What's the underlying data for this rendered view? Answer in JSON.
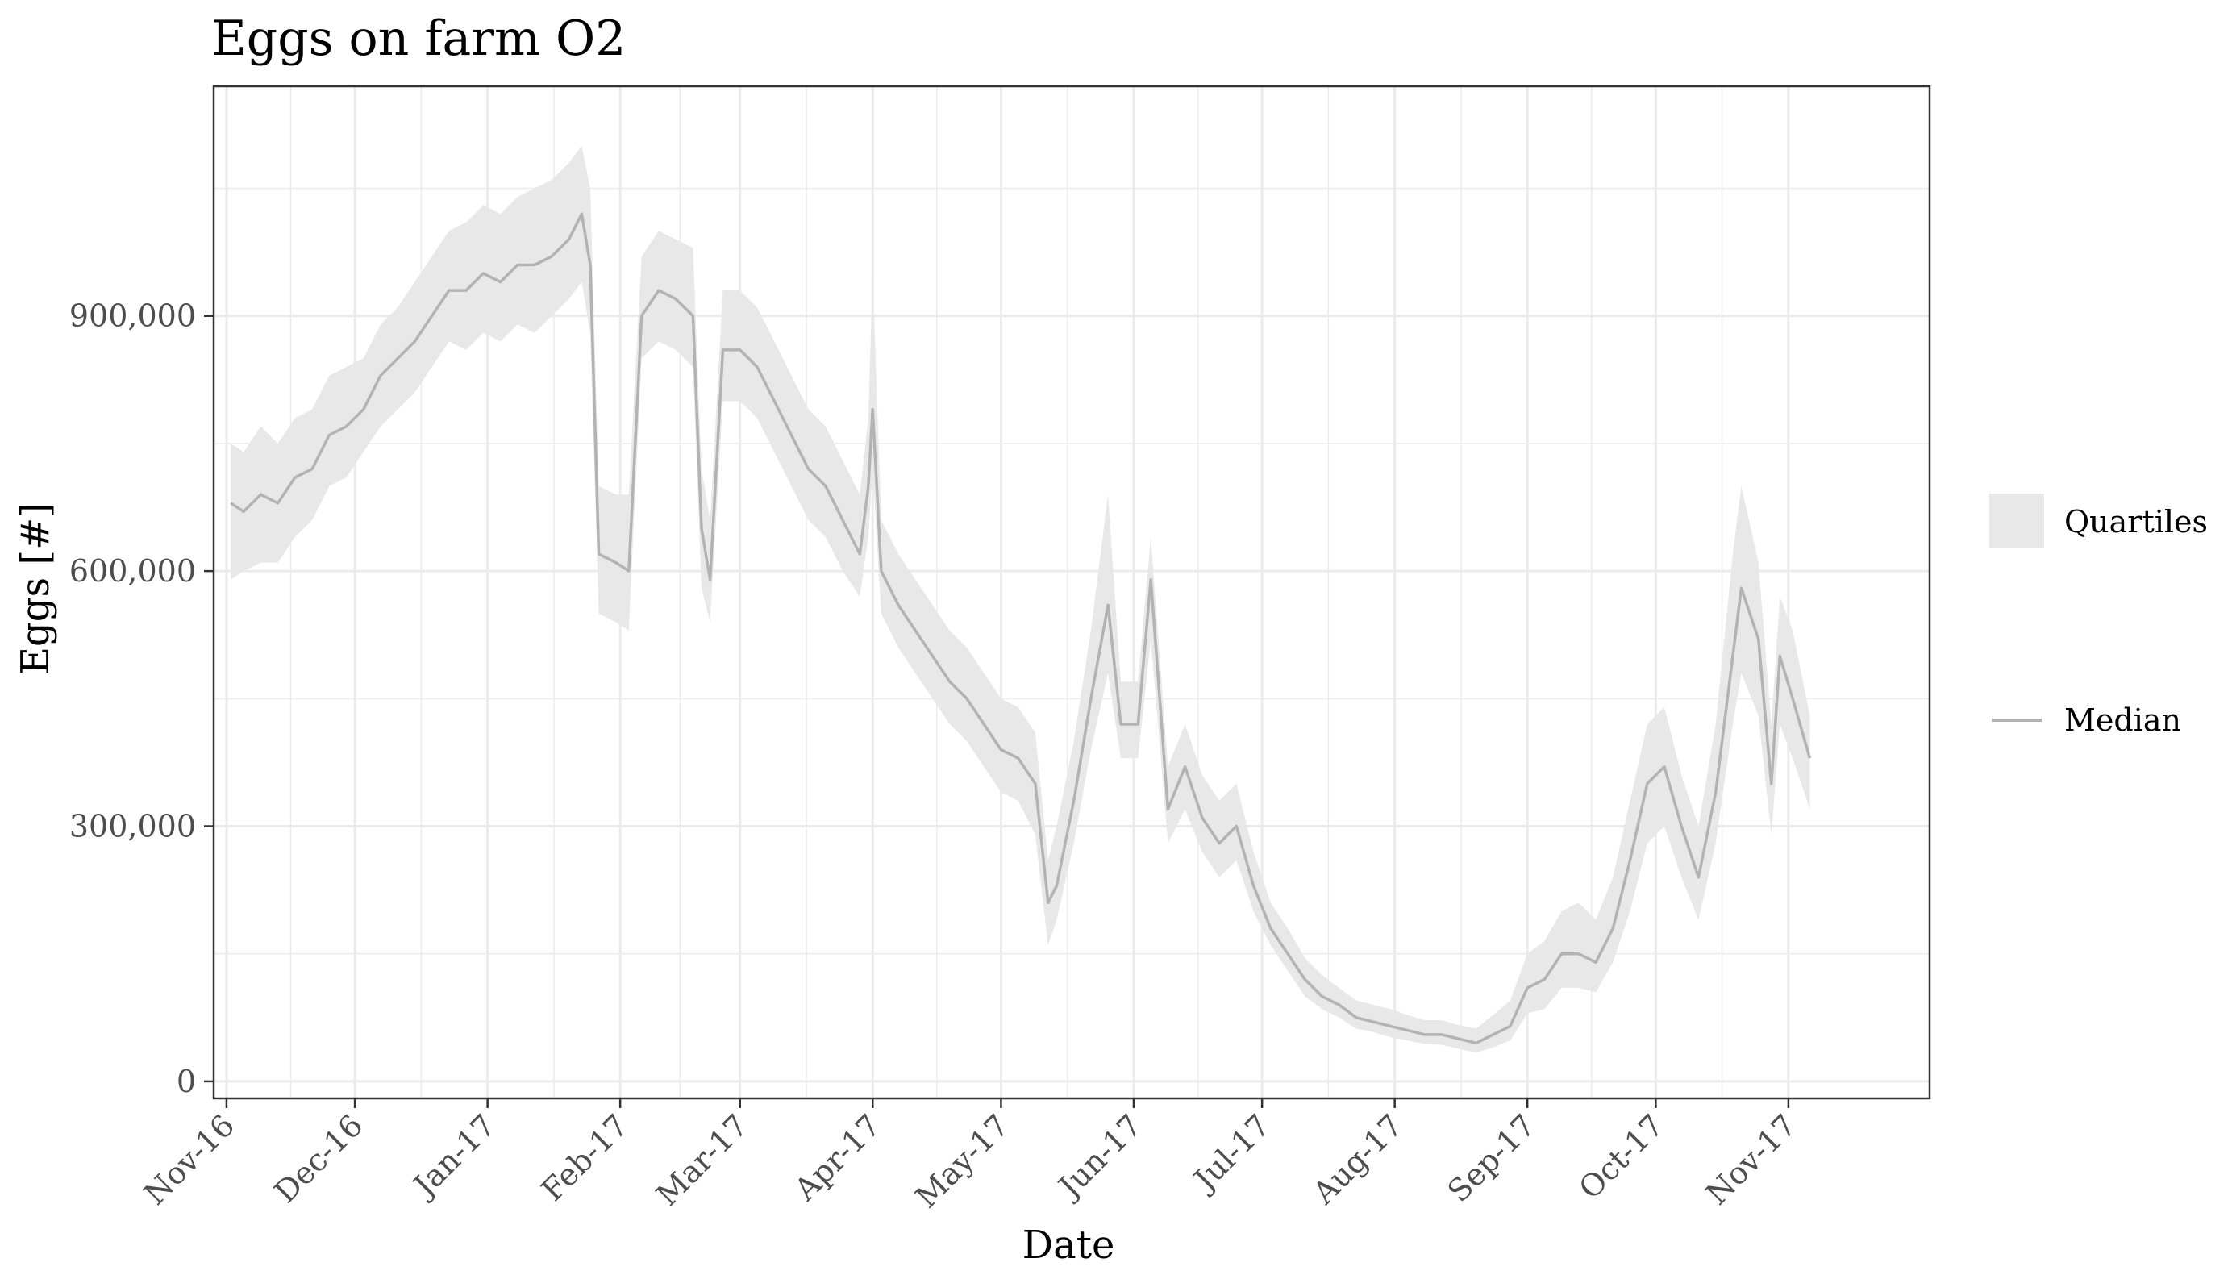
{
  "chart_data": {
    "type": "line",
    "title": "Eggs on farm O2",
    "xlabel": "Date",
    "ylabel": "Eggs [#]",
    "x_ticks": [
      "Nov-16",
      "Dec-16",
      "Jan-17",
      "Feb-17",
      "Mar-17",
      "Apr-17",
      "May-17",
      "Jun-17",
      "Jul-17",
      "Aug-17",
      "Sep-17",
      "Oct-17",
      "Nov-17"
    ],
    "y_ticks": [
      {
        "value": 0,
        "label": "0"
      },
      {
        "value": 300000,
        "label": "300,000"
      },
      {
        "value": 600000,
        "label": "600,000"
      },
      {
        "value": 900000,
        "label": "900,000"
      }
    ],
    "xlim": [
      "2016-10-29",
      "2017-12-04"
    ],
    "ylim": [
      -20000,
      1170000
    ],
    "grid": true,
    "legend_position": "right",
    "colors": {
      "band": "#e8e8e8",
      "median": "#b3b3b3",
      "grid": "#ebebeb",
      "panel_border": "#333333"
    },
    "series": [
      {
        "name": "Median",
        "role": "median",
        "points": [
          [
            "2016-11-02",
            680000
          ],
          [
            "2016-11-05",
            670000
          ],
          [
            "2016-11-09",
            690000
          ],
          [
            "2016-11-13",
            680000
          ],
          [
            "2016-11-17",
            710000
          ],
          [
            "2016-11-21",
            720000
          ],
          [
            "2016-11-25",
            760000
          ],
          [
            "2016-11-29",
            770000
          ],
          [
            "2016-12-03",
            790000
          ],
          [
            "2016-12-07",
            830000
          ],
          [
            "2016-12-11",
            850000
          ],
          [
            "2016-12-15",
            870000
          ],
          [
            "2016-12-19",
            900000
          ],
          [
            "2016-12-23",
            930000
          ],
          [
            "2016-12-27",
            930000
          ],
          [
            "2016-12-31",
            950000
          ],
          [
            "2017-01-04",
            940000
          ],
          [
            "2017-01-08",
            960000
          ],
          [
            "2017-01-12",
            960000
          ],
          [
            "2017-01-16",
            970000
          ],
          [
            "2017-01-20",
            990000
          ],
          [
            "2017-01-23",
            1020000
          ],
          [
            "2017-01-25",
            960000
          ],
          [
            "2017-01-27",
            620000
          ],
          [
            "2017-01-31",
            610000
          ],
          [
            "2017-02-03",
            600000
          ],
          [
            "2017-02-06",
            900000
          ],
          [
            "2017-02-10",
            930000
          ],
          [
            "2017-02-14",
            920000
          ],
          [
            "2017-02-18",
            900000
          ],
          [
            "2017-02-20",
            650000
          ],
          [
            "2017-02-22",
            590000
          ],
          [
            "2017-02-25",
            860000
          ],
          [
            "2017-03-01",
            860000
          ],
          [
            "2017-03-05",
            840000
          ],
          [
            "2017-03-09",
            800000
          ],
          [
            "2017-03-13",
            760000
          ],
          [
            "2017-03-17",
            720000
          ],
          [
            "2017-03-21",
            700000
          ],
          [
            "2017-03-25",
            660000
          ],
          [
            "2017-03-29",
            620000
          ],
          [
            "2017-03-31",
            700000
          ],
          [
            "2017-04-01",
            790000
          ],
          [
            "2017-04-03",
            600000
          ],
          [
            "2017-04-07",
            560000
          ],
          [
            "2017-04-11",
            530000
          ],
          [
            "2017-04-15",
            500000
          ],
          [
            "2017-04-19",
            470000
          ],
          [
            "2017-04-23",
            450000
          ],
          [
            "2017-04-27",
            420000
          ],
          [
            "2017-05-01",
            390000
          ],
          [
            "2017-05-05",
            380000
          ],
          [
            "2017-05-09",
            350000
          ],
          [
            "2017-05-12",
            210000
          ],
          [
            "2017-05-14",
            230000
          ],
          [
            "2017-05-18",
            330000
          ],
          [
            "2017-05-22",
            450000
          ],
          [
            "2017-05-26",
            560000
          ],
          [
            "2017-05-29",
            420000
          ],
          [
            "2017-06-02",
            420000
          ],
          [
            "2017-06-05",
            590000
          ],
          [
            "2017-06-09",
            320000
          ],
          [
            "2017-06-13",
            370000
          ],
          [
            "2017-06-17",
            310000
          ],
          [
            "2017-06-21",
            280000
          ],
          [
            "2017-06-25",
            300000
          ],
          [
            "2017-06-29",
            230000
          ],
          [
            "2017-07-03",
            180000
          ],
          [
            "2017-07-07",
            150000
          ],
          [
            "2017-07-11",
            120000
          ],
          [
            "2017-07-15",
            100000
          ],
          [
            "2017-07-19",
            90000
          ],
          [
            "2017-07-23",
            75000
          ],
          [
            "2017-07-27",
            70000
          ],
          [
            "2017-07-31",
            65000
          ],
          [
            "2017-08-04",
            60000
          ],
          [
            "2017-08-08",
            55000
          ],
          [
            "2017-08-12",
            55000
          ],
          [
            "2017-08-16",
            50000
          ],
          [
            "2017-08-20",
            45000
          ],
          [
            "2017-08-24",
            55000
          ],
          [
            "2017-08-28",
            65000
          ],
          [
            "2017-09-01",
            110000
          ],
          [
            "2017-09-05",
            120000
          ],
          [
            "2017-09-09",
            150000
          ],
          [
            "2017-09-13",
            150000
          ],
          [
            "2017-09-17",
            140000
          ],
          [
            "2017-09-21",
            180000
          ],
          [
            "2017-09-25",
            260000
          ],
          [
            "2017-09-29",
            350000
          ],
          [
            "2017-10-03",
            370000
          ],
          [
            "2017-10-07",
            300000
          ],
          [
            "2017-10-11",
            240000
          ],
          [
            "2017-10-15",
            340000
          ],
          [
            "2017-10-19",
            500000
          ],
          [
            "2017-10-21",
            580000
          ],
          [
            "2017-10-25",
            520000
          ],
          [
            "2017-10-28",
            350000
          ],
          [
            "2017-10-30",
            500000
          ],
          [
            "2017-11-02",
            450000
          ],
          [
            "2017-11-06",
            380000
          ]
        ]
      },
      {
        "name": "Quartiles",
        "role": "band",
        "points": [
          [
            "2016-11-02",
            590000,
            750000
          ],
          [
            "2016-11-05",
            600000,
            740000
          ],
          [
            "2016-11-09",
            610000,
            770000
          ],
          [
            "2016-11-13",
            610000,
            750000
          ],
          [
            "2016-11-17",
            640000,
            780000
          ],
          [
            "2016-11-21",
            660000,
            790000
          ],
          [
            "2016-11-25",
            700000,
            830000
          ],
          [
            "2016-11-29",
            710000,
            840000
          ],
          [
            "2016-12-03",
            740000,
            850000
          ],
          [
            "2016-12-07",
            770000,
            890000
          ],
          [
            "2016-12-11",
            790000,
            910000
          ],
          [
            "2016-12-15",
            810000,
            940000
          ],
          [
            "2016-12-19",
            840000,
            970000
          ],
          [
            "2016-12-23",
            870000,
            1000000
          ],
          [
            "2016-12-27",
            860000,
            1010000
          ],
          [
            "2016-12-31",
            880000,
            1030000
          ],
          [
            "2017-01-04",
            870000,
            1020000
          ],
          [
            "2017-01-08",
            890000,
            1040000
          ],
          [
            "2017-01-12",
            880000,
            1050000
          ],
          [
            "2017-01-16",
            900000,
            1060000
          ],
          [
            "2017-01-20",
            920000,
            1080000
          ],
          [
            "2017-01-23",
            940000,
            1100000
          ],
          [
            "2017-01-25",
            880000,
            1050000
          ],
          [
            "2017-01-27",
            550000,
            700000
          ],
          [
            "2017-01-31",
            540000,
            690000
          ],
          [
            "2017-02-03",
            530000,
            690000
          ],
          [
            "2017-02-06",
            850000,
            970000
          ],
          [
            "2017-02-10",
            870000,
            1000000
          ],
          [
            "2017-02-14",
            860000,
            990000
          ],
          [
            "2017-02-18",
            840000,
            980000
          ],
          [
            "2017-02-20",
            580000,
            720000
          ],
          [
            "2017-02-22",
            540000,
            660000
          ],
          [
            "2017-02-25",
            800000,
            930000
          ],
          [
            "2017-03-01",
            800000,
            930000
          ],
          [
            "2017-03-05",
            780000,
            910000
          ],
          [
            "2017-03-09",
            740000,
            870000
          ],
          [
            "2017-03-13",
            700000,
            830000
          ],
          [
            "2017-03-17",
            660000,
            790000
          ],
          [
            "2017-03-21",
            640000,
            770000
          ],
          [
            "2017-03-25",
            600000,
            730000
          ],
          [
            "2017-03-29",
            570000,
            690000
          ],
          [
            "2017-03-31",
            640000,
            780000
          ],
          [
            "2017-04-01",
            720000,
            950000
          ],
          [
            "2017-04-03",
            550000,
            660000
          ],
          [
            "2017-04-07",
            510000,
            620000
          ],
          [
            "2017-04-11",
            480000,
            590000
          ],
          [
            "2017-04-15",
            450000,
            560000
          ],
          [
            "2017-04-19",
            420000,
            530000
          ],
          [
            "2017-04-23",
            400000,
            510000
          ],
          [
            "2017-04-27",
            370000,
            480000
          ],
          [
            "2017-05-01",
            340000,
            450000
          ],
          [
            "2017-05-05",
            330000,
            440000
          ],
          [
            "2017-05-09",
            290000,
            410000
          ],
          [
            "2017-05-12",
            160000,
            260000
          ],
          [
            "2017-05-14",
            190000,
            300000
          ],
          [
            "2017-05-18",
            280000,
            400000
          ],
          [
            "2017-05-22",
            390000,
            530000
          ],
          [
            "2017-05-26",
            480000,
            690000
          ],
          [
            "2017-05-29",
            380000,
            470000
          ],
          [
            "2017-06-02",
            380000,
            470000
          ],
          [
            "2017-06-05",
            520000,
            640000
          ],
          [
            "2017-06-09",
            280000,
            370000
          ],
          [
            "2017-06-13",
            320000,
            420000
          ],
          [
            "2017-06-17",
            270000,
            360000
          ],
          [
            "2017-06-21",
            240000,
            330000
          ],
          [
            "2017-06-25",
            260000,
            350000
          ],
          [
            "2017-06-29",
            200000,
            270000
          ],
          [
            "2017-07-03",
            160000,
            210000
          ],
          [
            "2017-07-07",
            130000,
            180000
          ],
          [
            "2017-07-11",
            100000,
            145000
          ],
          [
            "2017-07-15",
            85000,
            125000
          ],
          [
            "2017-07-19",
            75000,
            110000
          ],
          [
            "2017-07-23",
            62000,
            95000
          ],
          [
            "2017-07-27",
            58000,
            90000
          ],
          [
            "2017-07-31",
            52000,
            85000
          ],
          [
            "2017-08-04",
            48000,
            78000
          ],
          [
            "2017-08-08",
            44000,
            72000
          ],
          [
            "2017-08-12",
            43000,
            72000
          ],
          [
            "2017-08-16",
            38000,
            66000
          ],
          [
            "2017-08-20",
            34000,
            62000
          ],
          [
            "2017-08-24",
            40000,
            78000
          ],
          [
            "2017-08-28",
            48000,
            95000
          ],
          [
            "2017-09-01",
            80000,
            150000
          ],
          [
            "2017-09-05",
            85000,
            165000
          ],
          [
            "2017-09-09",
            110000,
            200000
          ],
          [
            "2017-09-13",
            110000,
            210000
          ],
          [
            "2017-09-17",
            105000,
            190000
          ],
          [
            "2017-09-21",
            140000,
            240000
          ],
          [
            "2017-09-25",
            200000,
            330000
          ],
          [
            "2017-09-29",
            280000,
            420000
          ],
          [
            "2017-10-03",
            300000,
            440000
          ],
          [
            "2017-10-07",
            240000,
            360000
          ],
          [
            "2017-10-11",
            190000,
            300000
          ],
          [
            "2017-10-15",
            280000,
            420000
          ],
          [
            "2017-10-19",
            420000,
            620000
          ],
          [
            "2017-10-21",
            480000,
            700000
          ],
          [
            "2017-10-25",
            430000,
            610000
          ],
          [
            "2017-10-28",
            290000,
            420000
          ],
          [
            "2017-10-30",
            420000,
            570000
          ],
          [
            "2017-11-02",
            380000,
            530000
          ],
          [
            "2017-11-06",
            320000,
            430000
          ]
        ]
      }
    ]
  }
}
